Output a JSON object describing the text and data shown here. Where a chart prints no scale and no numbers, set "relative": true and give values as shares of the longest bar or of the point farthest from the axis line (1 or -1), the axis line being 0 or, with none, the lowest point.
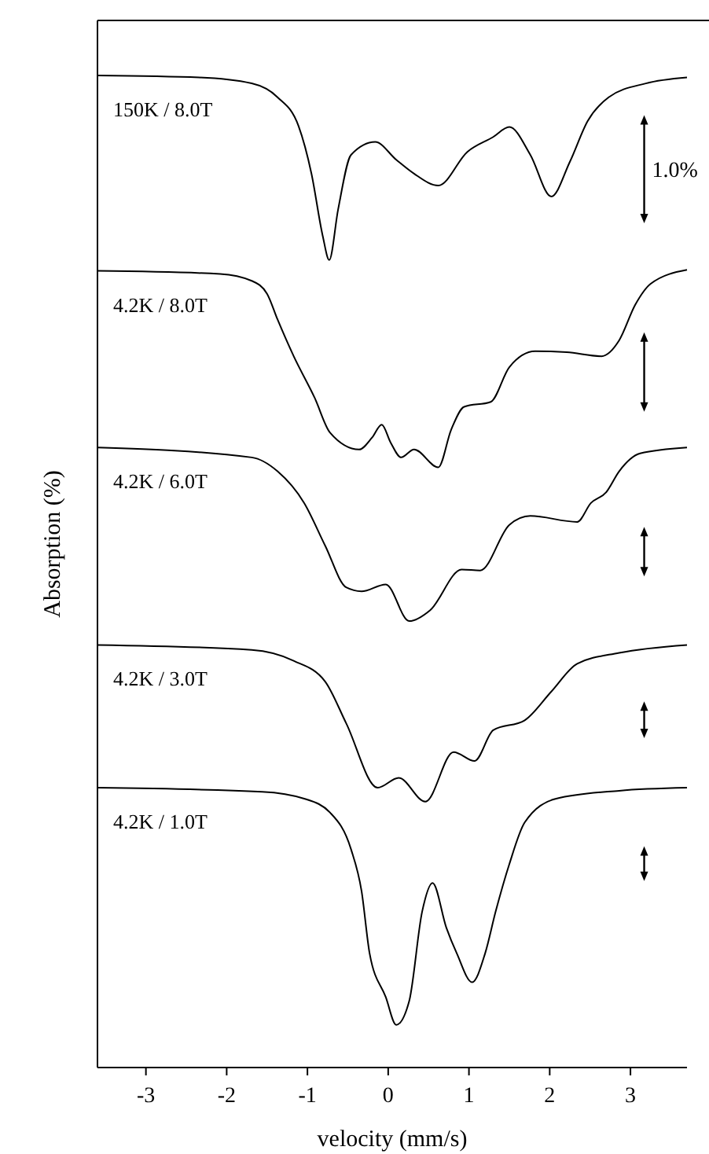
{
  "chart_data": {
    "type": "line",
    "relative": true,
    "xlabel": "velocity (mm/s)",
    "ylabel": "Absorption (%)",
    "xlim": [
      -3.6,
      3.7
    ],
    "xticks": [
      -3,
      -2,
      -1,
      0,
      1,
      2,
      3
    ],
    "legend": false,
    "grid": false,
    "marker": "none",
    "line_style": "solid",
    "annotations": [
      "1.0%"
    ],
    "series": [
      {
        "name": "150K / 8.0T",
        "color": "#000000",
        "x": [
          -3.6,
          -2.34,
          -1.69,
          -1.37,
          -1.11,
          -0.95,
          -0.81,
          -0.73,
          -0.62,
          -0.46,
          -0.16,
          0.1,
          0.32,
          0.62,
          0.98,
          1.3,
          1.5,
          1.76,
          2.02,
          2.25,
          2.47,
          2.73,
          3.19,
          3.7
        ],
        "values": [
          1.0,
          0.998,
          0.992,
          0.978,
          0.949,
          0.901,
          0.838,
          0.814,
          0.865,
          0.92,
          0.933,
          0.915,
          0.901,
          0.889,
          0.923,
          0.938,
          0.948,
          0.92,
          0.878,
          0.913,
          0.954,
          0.978,
          0.992,
          0.998
        ]
      },
      {
        "name": "4.2K / 8.0T",
        "color": "#000000",
        "x": [
          -3.6,
          -2.08,
          -1.69,
          -1.5,
          -1.37,
          -1.17,
          -0.91,
          -0.72,
          -0.36,
          -0.2,
          -0.08,
          0.03,
          0.16,
          0.32,
          0.62,
          0.78,
          0.94,
          1.27,
          1.5,
          1.82,
          2.21,
          2.64,
          2.86,
          3.06,
          3.25,
          3.7
        ],
        "values": [
          0.803,
          0.8,
          0.793,
          0.78,
          0.754,
          0.717,
          0.675,
          0.64,
          0.623,
          0.635,
          0.648,
          0.63,
          0.615,
          0.623,
          0.605,
          0.643,
          0.666,
          0.671,
          0.706,
          0.722,
          0.721,
          0.717,
          0.733,
          0.769,
          0.79,
          0.804
        ]
      },
      {
        "name": "4.2K / 6.0T",
        "color": "#000000",
        "x": [
          -3.6,
          -1.69,
          -1.37,
          -1.04,
          -0.78,
          -0.52,
          -0.33,
          -0.03,
          0.26,
          0.52,
          0.91,
          1.14,
          1.5,
          1.76,
          2.34,
          2.51,
          2.7,
          2.86,
          3.12,
          3.7
        ],
        "values": [
          0.625,
          0.615,
          0.601,
          0.569,
          0.526,
          0.484,
          0.48,
          0.487,
          0.45,
          0.461,
          0.502,
          0.501,
          0.547,
          0.556,
          0.55,
          0.569,
          0.58,
          0.601,
          0.619,
          0.625
        ]
      },
      {
        "name": "4.2K / 3.0T",
        "color": "#000000",
        "x": [
          -3.6,
          -1.69,
          -1.17,
          -0.78,
          -0.52,
          -0.13,
          0.13,
          0.46,
          0.81,
          1.07,
          1.3,
          1.69,
          2.02,
          2.34,
          2.86,
          3.7
        ],
        "values": [
          0.426,
          0.421,
          0.41,
          0.389,
          0.347,
          0.282,
          0.292,
          0.268,
          0.318,
          0.309,
          0.34,
          0.35,
          0.379,
          0.407,
          0.418,
          0.426
        ]
      },
      {
        "name": "4.2K / 1.0T",
        "color": "#000000",
        "x": [
          -3.6,
          -1.56,
          -1.04,
          -0.72,
          -0.46,
          -0.33,
          -0.23,
          -0.03,
          0.1,
          0.26,
          0.42,
          0.55,
          0.72,
          0.85,
          1.04,
          1.2,
          1.33,
          1.5,
          1.69,
          2.08,
          2.86,
          3.7
        ],
        "values": [
          0.282,
          0.278,
          0.271,
          0.257,
          0.22,
          0.178,
          0.115,
          0.071,
          0.043,
          0.067,
          0.157,
          0.186,
          0.141,
          0.115,
          0.086,
          0.115,
          0.157,
          0.205,
          0.247,
          0.271,
          0.279,
          0.282
        ]
      }
    ]
  }
}
